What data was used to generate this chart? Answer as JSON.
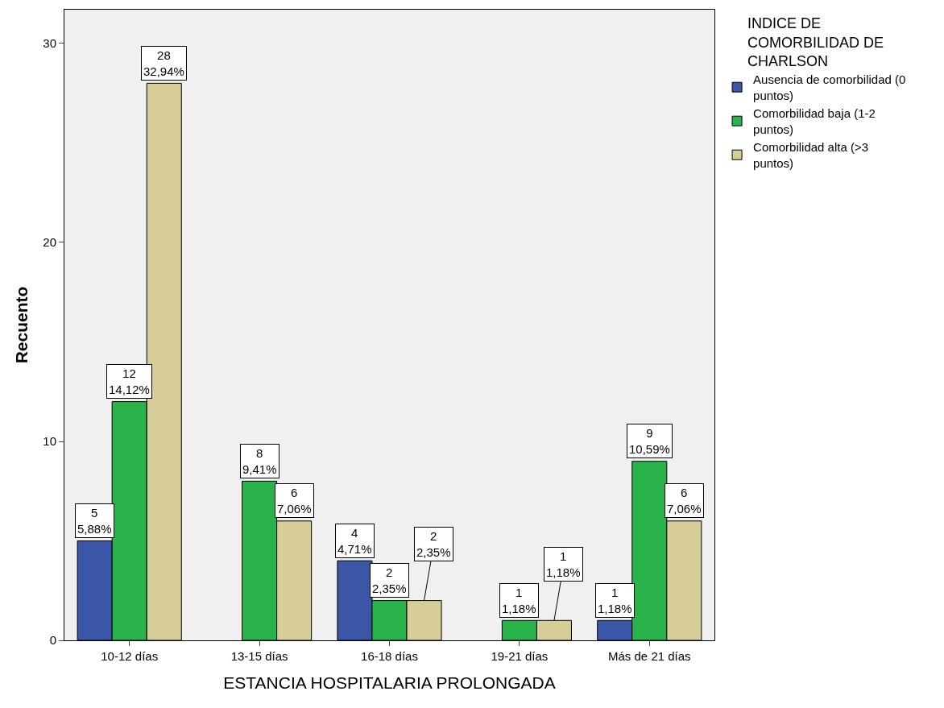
{
  "chart_data": {
    "type": "bar",
    "xlabel": "ESTANCIA HOSPITALARIA PROLONGADA",
    "ylabel": "Recuento",
    "legend_title": "INDICE DE COMORBILIDAD DE CHARLSON",
    "legend": "top right",
    "grid": false,
    "categories": [
      "10-12 días",
      "13-15 días",
      "16-18 días",
      "19-21 días",
      "Más de 21 días"
    ],
    "ylim": [
      0,
      31.7
    ],
    "yticks": [
      0,
      10,
      20,
      30
    ],
    "series": [
      {
        "name": "Ausencia de comorbilidad (0 puntos)",
        "color": "#3b56a6",
        "values": [
          5,
          null,
          4,
          null,
          1
        ],
        "value_labels": [
          "5\n5,88%",
          null,
          "4\n4,71%",
          null,
          "1\n1,18%"
        ]
      },
      {
        "name": "Comorbilidad baja (1-2 puntos)",
        "color": "#2bb34b",
        "values": [
          12,
          8,
          2,
          1,
          9
        ],
        "value_labels": [
          "12\n14,12%",
          "8\n9,41%",
          "2\n2,35%",
          "1\n1,18%",
          "9\n10,59%"
        ]
      },
      {
        "name": "Comorbilidad alta (>3 puntos)",
        "color": "#d6cd98",
        "values": [
          28,
          6,
          2,
          1,
          6
        ],
        "value_labels": [
          "28\n32,94%",
          "6\n7,06%",
          "2\n2,35%",
          "1\n1,18%",
          "6\n7,06%"
        ]
      }
    ]
  }
}
